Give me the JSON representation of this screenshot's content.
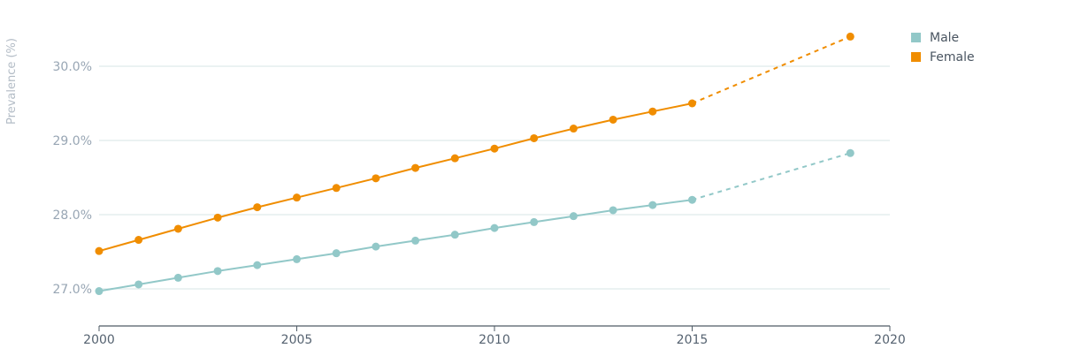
{
  "chart_data": {
    "type": "line",
    "ylabel": "Prevalence (%)",
    "xlabel": "",
    "xlim": [
      2000,
      2020
    ],
    "ylim": [
      26.5,
      30.5
    ],
    "x_ticks": [
      2000,
      2005,
      2010,
      2015,
      2020
    ],
    "y_ticks": [
      {
        "value": 27.0,
        "label": "27.0%"
      },
      {
        "value": 28.0,
        "label": "28.0%"
      },
      {
        "value": 29.0,
        "label": "29.0%"
      },
      {
        "value": 30.0,
        "label": "30.0%"
      }
    ],
    "grid": "horizontal",
    "legend_position": "top-right",
    "series": [
      {
        "name": "Male",
        "color": "#92c8c8",
        "x": [
          2000,
          2001,
          2002,
          2003,
          2004,
          2005,
          2006,
          2007,
          2008,
          2009,
          2010,
          2011,
          2012,
          2013,
          2014,
          2015
        ],
        "values": [
          26.97,
          27.06,
          27.15,
          27.24,
          27.32,
          27.4,
          27.48,
          27.57,
          27.65,
          27.73,
          27.82,
          27.9,
          27.98,
          28.06,
          28.13,
          28.2
        ],
        "projection_x": [
          2015,
          2019
        ],
        "projection_values": [
          28.2,
          28.83
        ]
      },
      {
        "name": "Female",
        "color": "#f08d00",
        "x": [
          2000,
          2001,
          2002,
          2003,
          2004,
          2005,
          2006,
          2007,
          2008,
          2009,
          2010,
          2011,
          2012,
          2013,
          2014,
          2015
        ],
        "values": [
          27.51,
          27.66,
          27.81,
          27.96,
          28.1,
          28.23,
          28.36,
          28.49,
          28.63,
          28.76,
          28.89,
          29.03,
          29.16,
          29.28,
          29.39,
          29.5
        ],
        "projection_x": [
          2015,
          2019
        ],
        "projection_values": [
          29.5,
          30.4
        ]
      }
    ]
  }
}
